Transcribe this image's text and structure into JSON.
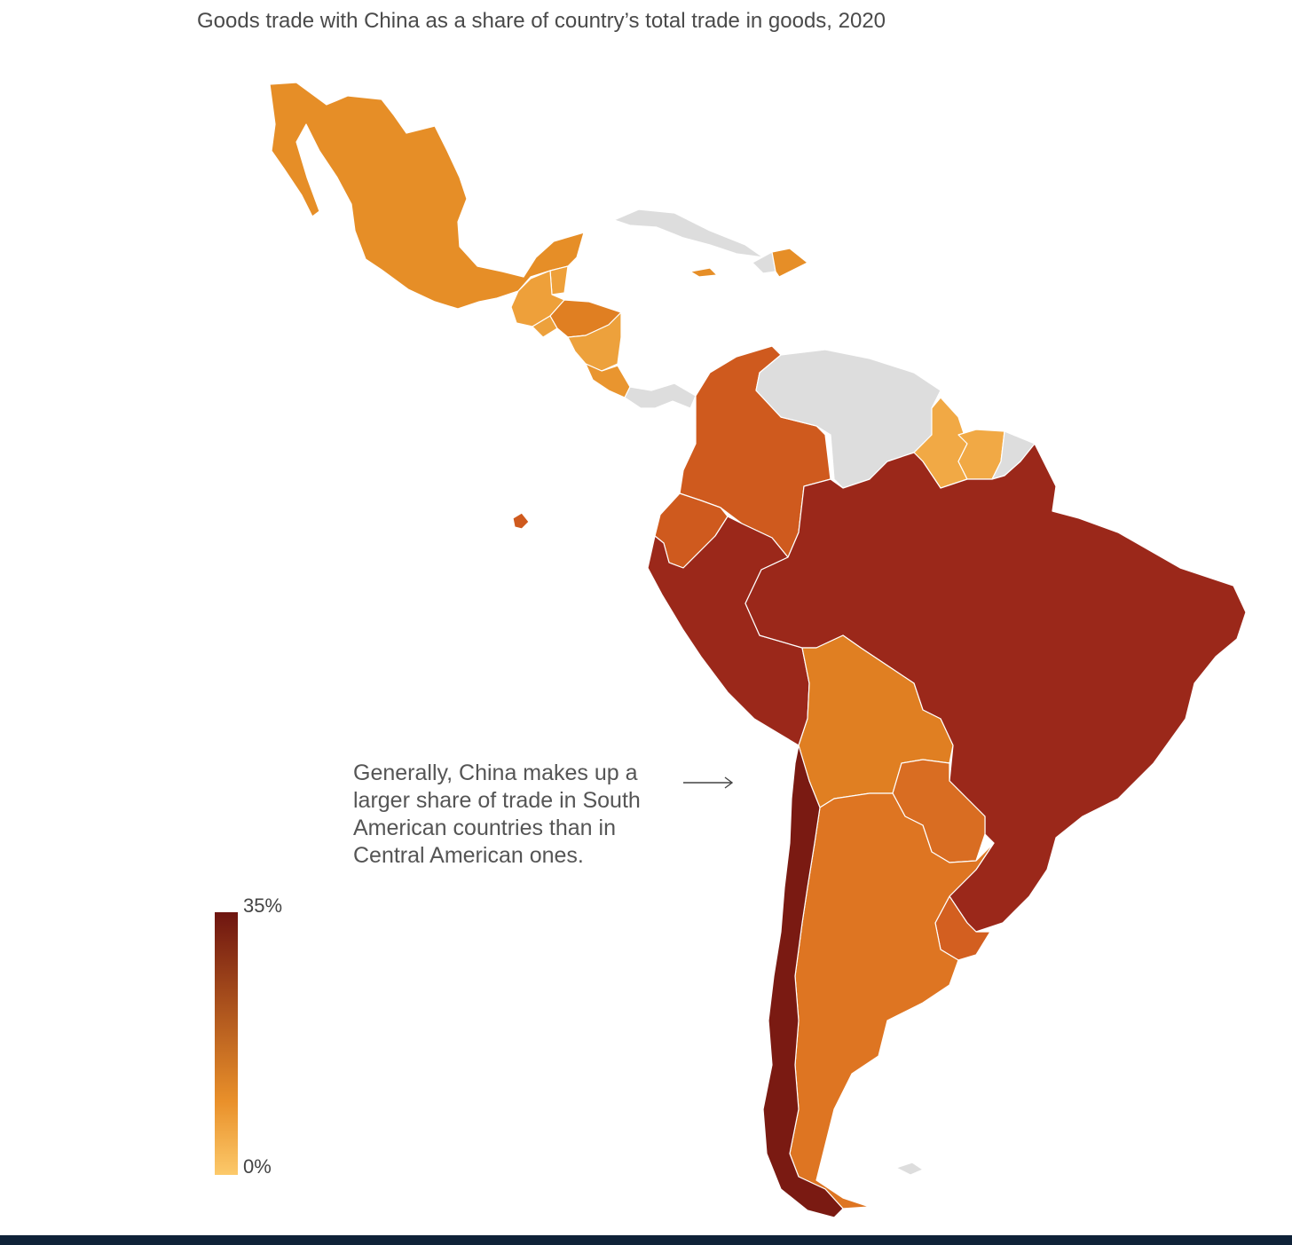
{
  "title": "Goods trade with China as a share of country’s total trade in goods, 2020",
  "annotation": {
    "line1": "Generally, China makes up a",
    "line2": "larger share of trade in South",
    "line3": "American countries than in",
    "line4": "Central American ones."
  },
  "legend": {
    "max_label": "35%",
    "min_label": "0%",
    "color_low": "#fcc96a",
    "color_mid": "#e9902a",
    "color_high": "#6e1510"
  },
  "colors": {
    "no_data": "#dddddd",
    "border": "#ffffff",
    "footer": "#0f2238"
  },
  "regions": [
    {
      "id": "mexico",
      "color": "#e68e27"
    },
    {
      "id": "guatemala",
      "color": "#eea03a"
    },
    {
      "id": "belize",
      "color": "#eea03a"
    },
    {
      "id": "el-salvador",
      "color": "#eda13c"
    },
    {
      "id": "honduras",
      "color": "#e07f22"
    },
    {
      "id": "nicaragua",
      "color": "#eda13c"
    },
    {
      "id": "costa-rica",
      "color": "#e9952f"
    },
    {
      "id": "panama",
      "color": "#dddddd"
    },
    {
      "id": "cuba",
      "color": "#dddddd"
    },
    {
      "id": "jamaica",
      "color": "#e68e27"
    },
    {
      "id": "haiti",
      "color": "#dddddd"
    },
    {
      "id": "dominican-republic",
      "color": "#e68e27"
    },
    {
      "id": "colombia",
      "color": "#cf5a1e"
    },
    {
      "id": "venezuela",
      "color": "#dddddd"
    },
    {
      "id": "guyana",
      "color": "#f1a945"
    },
    {
      "id": "suriname",
      "color": "#f1a945"
    },
    {
      "id": "french-guiana",
      "color": "#dddddd"
    },
    {
      "id": "ecuador",
      "color": "#cf5a1e"
    },
    {
      "id": "galapagos",
      "color": "#cf5a1e"
    },
    {
      "id": "peru",
      "color": "#9b281a"
    },
    {
      "id": "brazil",
      "color": "#9b281a"
    },
    {
      "id": "bolivia",
      "color": "#e07f22"
    },
    {
      "id": "paraguay",
      "color": "#d96d22"
    },
    {
      "id": "chile",
      "color": "#7a1a12"
    },
    {
      "id": "argentina",
      "color": "#de7522"
    },
    {
      "id": "uruguay",
      "color": "#d35f20"
    },
    {
      "id": "falklands",
      "color": "#dddddd"
    }
  ]
}
